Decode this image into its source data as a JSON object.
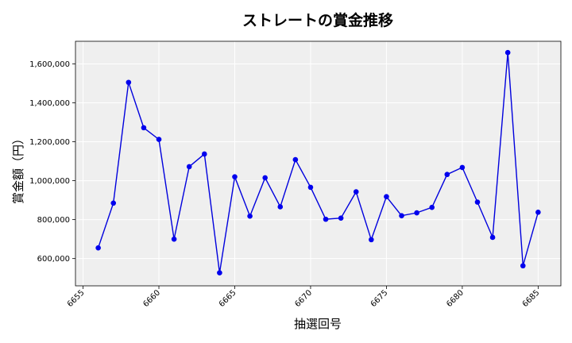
{
  "chart_data": {
    "type": "line",
    "title": "ストレートの賞金推移",
    "xlabel": "抽選回号",
    "ylabel": "賞金額（円）",
    "x": [
      6656,
      6657,
      6658,
      6659,
      6660,
      6661,
      6662,
      6663,
      6664,
      6665,
      6666,
      6667,
      6668,
      6669,
      6670,
      6671,
      6672,
      6673,
      6674,
      6675,
      6676,
      6677,
      6678,
      6679,
      6680,
      6681,
      6682,
      6683,
      6684,
      6685
    ],
    "series": [
      {
        "values": [
          655000,
          885000,
          1505000,
          1272000,
          1212000,
          700000,
          1072000,
          1137000,
          527000,
          1020000,
          818000,
          1015000,
          866000,
          1108000,
          966000,
          802000,
          808000,
          943000,
          697000,
          918000,
          820000,
          835000,
          863000,
          1032000,
          1068000,
          890000,
          709000,
          1658000,
          563000,
          838000
        ]
      }
    ],
    "xticks": [
      6655,
      6660,
      6665,
      6670,
      6675,
      6680,
      6685
    ],
    "xtick_labels": [
      "6655",
      "6660",
      "6665",
      "6670",
      "6675",
      "6680",
      "6685"
    ],
    "yticks": [
      600000,
      800000,
      1000000,
      1200000,
      1400000,
      1600000
    ],
    "ytick_labels": [
      "600,000",
      "800,000",
      "1,000,000",
      "1,200,000",
      "1,400,000",
      "1,600,000"
    ],
    "xlim": [
      6654.5,
      6686.5
    ],
    "ylim": [
      460000,
      1716000
    ],
    "grid": true,
    "colors": {
      "line": "#0000dd",
      "marker": "#0000ee",
      "plot_bg": "#efefef",
      "grid": "#ffffff"
    }
  }
}
